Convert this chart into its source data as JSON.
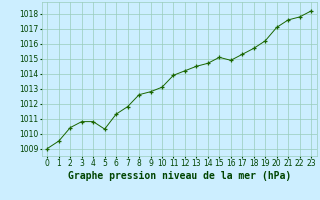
{
  "x": [
    0,
    1,
    2,
    3,
    4,
    5,
    6,
    7,
    8,
    9,
    10,
    11,
    12,
    13,
    14,
    15,
    16,
    17,
    18,
    19,
    20,
    21,
    22,
    23
  ],
  "y": [
    1009.0,
    1009.5,
    1010.4,
    1010.8,
    1010.8,
    1010.3,
    1011.3,
    1011.8,
    1012.6,
    1012.8,
    1013.1,
    1013.9,
    1014.2,
    1014.5,
    1014.7,
    1015.1,
    1014.9,
    1015.3,
    1015.7,
    1016.2,
    1017.1,
    1017.6,
    1017.8,
    1018.2
  ],
  "line_color": "#1a6600",
  "marker_color": "#1a6600",
  "bg_color": "#cceeff",
  "grid_color": "#99ccbb",
  "xlabel": "Graphe pression niveau de la mer (hPa)",
  "xlabel_color": "#004400",
  "xlabel_fontsize": 7,
  "xtick_labels": [
    "0",
    "1",
    "2",
    "3",
    "4",
    "5",
    "6",
    "7",
    "8",
    "9",
    "10",
    "11",
    "12",
    "13",
    "14",
    "15",
    "16",
    "17",
    "18",
    "19",
    "20",
    "21",
    "22",
    "23"
  ],
  "ylim": [
    1008.5,
    1018.8
  ],
  "yticks": [
    1009,
    1010,
    1011,
    1012,
    1013,
    1014,
    1015,
    1016,
    1017,
    1018
  ],
  "tick_fontsize": 5.5,
  "tick_color": "#004400"
}
